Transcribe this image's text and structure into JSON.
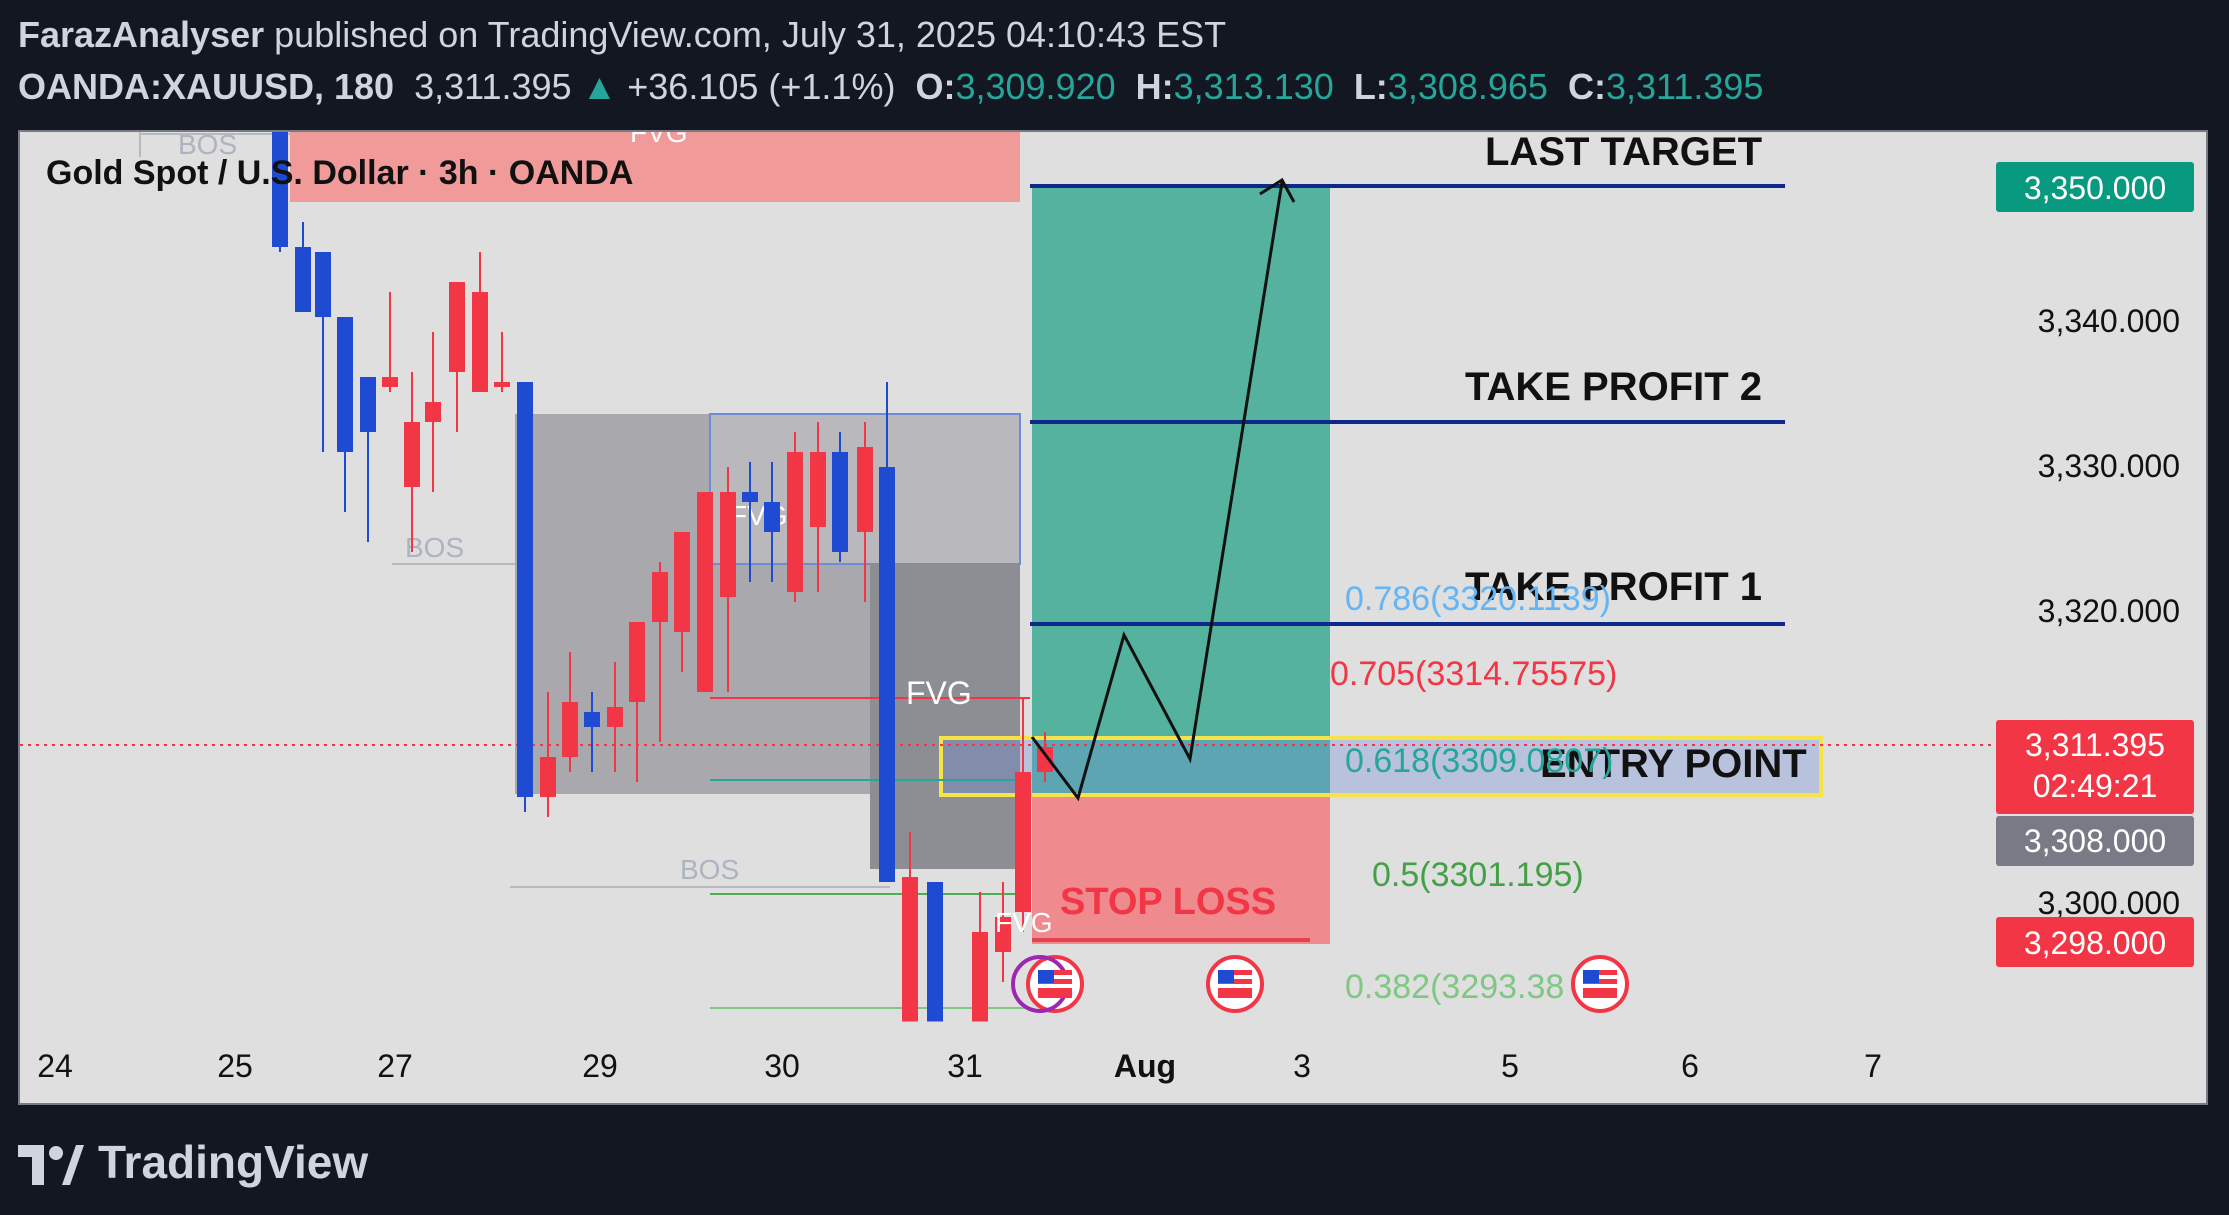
{
  "header": {
    "author": "FarazAnalyser",
    "published_text": "published on TradingView.com, July 31, 2025 04:10:43 EST",
    "symbol": "OANDA:XAUUSD, 180",
    "last_price": "3,311.395",
    "change_arrow": "▲",
    "change": "+36.105 (+1.1%)",
    "o_label": "O:",
    "o_value": "3,309.920",
    "h_label": "H:",
    "h_value": "3,313.130",
    "l_label": "L:",
    "l_value": "3,308.965",
    "c_label": "C:",
    "c_value": "3,311.395"
  },
  "chart": {
    "legend_title": "Gold Spot / U.S. Dollar · 3h · OANDA",
    "annotations": {
      "last_target": "LAST TARGET",
      "take_profit_2": "TAKE PROFIT 2",
      "take_profit_1": "TAKE PROFIT 1",
      "entry_point": "ENTRY POINT",
      "stop_loss": "STOP LOSS",
      "fvg_top": "FVG",
      "fvg_mid": "FVG",
      "fvg_gray": "FVG",
      "fvg_low": "FVG",
      "bos_1": "BOS",
      "bos_2": "BOS",
      "bos_3": "BOS"
    },
    "fib_labels": {
      "f786": "0.786(3320.1139)",
      "f705": "0.705(3314.75575)",
      "f618": "0.618(3309.0807)",
      "f500": "0.5(3301.195)",
      "f382": "0.382(3293.38"
    },
    "price_axis": {
      "ticks": [
        "3,340.000",
        "3,330.000",
        "3,320.000",
        "3,300.000"
      ],
      "badge_target": "3,350.000",
      "badge_last": "3,311.395",
      "badge_countdown": "02:49:21",
      "badge_entry": "3,308.000",
      "badge_stop": "3,298.000"
    },
    "time_axis": {
      "labels": [
        "24",
        "25",
        "27",
        "29",
        "30",
        "31",
        "Aug",
        "3",
        "5",
        "6",
        "7"
      ]
    },
    "colors": {
      "bull": "#f23645",
      "bear": "#1e4bd2",
      "target_zone": "#4caf9a",
      "stop_zone": "#ef8a8f",
      "level_line": "#0d2a8a",
      "entry_box": "#f5e34a"
    }
  },
  "footer": {
    "brand": "TradingView"
  }
}
